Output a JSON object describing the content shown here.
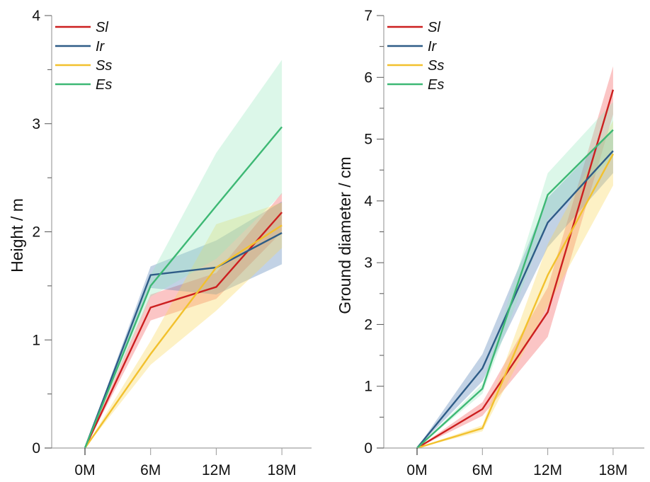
{
  "chart_data": [
    {
      "type": "line",
      "title": "",
      "xlabel": "",
      "ylabel": "Height / m",
      "categories": [
        "0M",
        "6M",
        "12M",
        "18M"
      ],
      "ylim": [
        0,
        4
      ],
      "yticks": [
        "0",
        "1",
        "2",
        "3",
        "4"
      ],
      "y_minor_step": 0.5,
      "grid": false,
      "legend": "top-left",
      "series": [
        {
          "name": "Sl",
          "color": "#cc1f1f",
          "band_color": "#f4595a",
          "values": [
            0,
            1.3,
            1.49,
            2.18
          ],
          "lower": [
            0,
            1.18,
            1.38,
            2.0
          ],
          "upper": [
            0,
            1.42,
            1.62,
            2.36
          ]
        },
        {
          "name": "Ir",
          "color": "#2e5c87",
          "band_color": "#4f7fb5",
          "values": [
            0,
            1.6,
            1.67,
            1.99
          ],
          "lower": [
            0,
            1.48,
            1.42,
            1.7
          ],
          "upper": [
            0,
            1.68,
            1.92,
            2.28
          ]
        },
        {
          "name": "Ss",
          "color": "#f2c12e",
          "band_color": "#fad75a",
          "values": [
            0,
            0.87,
            1.67,
            2.06
          ],
          "lower": [
            0,
            0.77,
            1.27,
            1.85
          ],
          "upper": [
            0,
            0.99,
            2.07,
            2.27
          ]
        },
        {
          "name": "Es",
          "color": "#3db874",
          "band_color": "#9be8c0",
          "values": [
            0,
            1.5,
            2.24,
            2.97
          ],
          "lower": [
            0,
            1.4,
            1.75,
            2.35
          ],
          "upper": [
            0,
            1.6,
            2.73,
            3.59
          ]
        }
      ]
    },
    {
      "type": "line",
      "title": "",
      "xlabel": "",
      "ylabel": "Ground diameter / cm",
      "categories": [
        "0M",
        "6M",
        "12M",
        "18M"
      ],
      "ylim": [
        0,
        7
      ],
      "yticks": [
        "0",
        "1",
        "2",
        "3",
        "4",
        "5",
        "6",
        "7"
      ],
      "y_minor_step": 0.5,
      "grid": false,
      "legend": "top-left",
      "series": [
        {
          "name": "Sl",
          "color": "#cc1f1f",
          "band_color": "#f4595a",
          "values": [
            0,
            0.63,
            2.2,
            5.8
          ],
          "lower": [
            0,
            0.52,
            1.8,
            5.4
          ],
          "upper": [
            0,
            0.74,
            2.6,
            6.18
          ]
        },
        {
          "name": "Ir",
          "color": "#2e5c87",
          "band_color": "#4f7fb5",
          "values": [
            0,
            1.29,
            3.65,
            4.81
          ],
          "lower": [
            0,
            1.08,
            3.25,
            4.45
          ],
          "upper": [
            0,
            1.52,
            4.05,
            5.15
          ]
        },
        {
          "name": "Ss",
          "color": "#f2c12e",
          "band_color": "#fad75a",
          "values": [
            0,
            0.32,
            2.8,
            4.76
          ],
          "lower": [
            0,
            0.27,
            2.3,
            4.25
          ],
          "upper": [
            0,
            0.37,
            3.3,
            5.3
          ]
        },
        {
          "name": "Es",
          "color": "#3db874",
          "band_color": "#9be8c0",
          "values": [
            0,
            0.96,
            4.1,
            5.15
          ],
          "lower": [
            0,
            0.88,
            3.7,
            4.7
          ],
          "upper": [
            0,
            1.04,
            4.45,
            5.6
          ]
        }
      ]
    }
  ]
}
